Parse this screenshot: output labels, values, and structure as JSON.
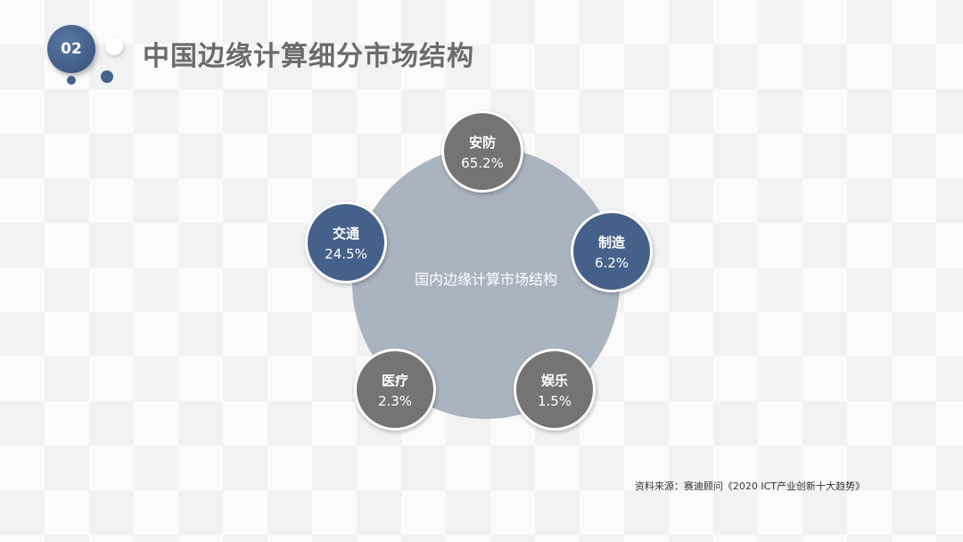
{
  "header": {
    "badge": "02",
    "title": "中国边缘计算细分市场结构"
  },
  "diagram": {
    "center_label": "国内边缘计算市场结构",
    "nodes": [
      {
        "name": "安防",
        "value": "65.2%",
        "color": "#747474"
      },
      {
        "name": "制造",
        "value": "6.2%",
        "color": "#45618a"
      },
      {
        "name": "娱乐",
        "value": "1.5%",
        "color": "#747474"
      },
      {
        "name": "医疗",
        "value": "2.3%",
        "color": "#747474"
      },
      {
        "name": "交通",
        "value": "24.5%",
        "color": "#45618a"
      }
    ],
    "center_color": "#aab4c0"
  },
  "source": "资料来源：赛迪顾问《2020 ICT产业创新十大趋势》"
}
